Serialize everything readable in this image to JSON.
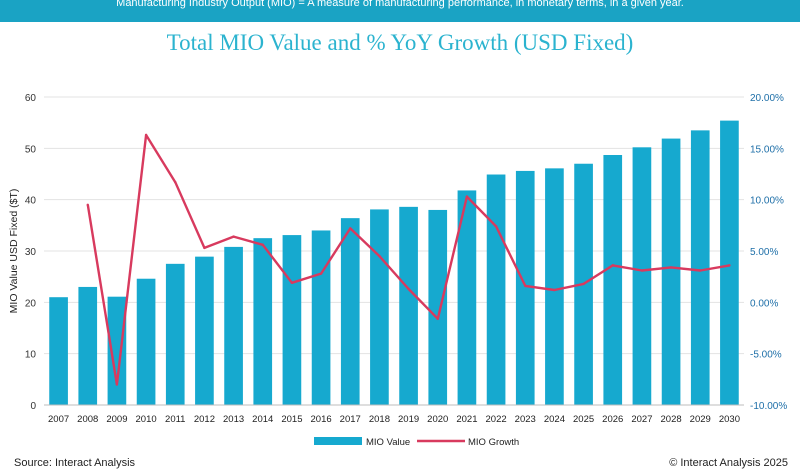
{
  "banner": {
    "text": "Manufacturing Industry Output (MIO) = A measure of manufacturing performance, in monetary terms, in a given year."
  },
  "footer": {
    "source": "Source: Interact Analysis",
    "copyright": "© Interact Analysis 2025"
  },
  "colors": {
    "bar": "#16a9cf",
    "line": "#d83a5e",
    "title": "#2bb3cf",
    "banner": "#1aa3c4"
  },
  "chart_data": {
    "type": "bar",
    "title": "Total MIO Value and % YoY Growth (USD Fixed)",
    "ylabel": "MIO Value USD Fixed ($T)",
    "xlabel": "",
    "categories": [
      "2007",
      "2008",
      "2009",
      "2010",
      "2011",
      "2012",
      "2013",
      "2014",
      "2015",
      "2016",
      "2017",
      "2018",
      "2019",
      "2020",
      "2021",
      "2022",
      "2023",
      "2024",
      "2025",
      "2026",
      "2027",
      "2028",
      "2029",
      "2030"
    ],
    "ylim": [
      0,
      60
    ],
    "yticks": [
      0,
      10,
      20,
      30,
      40,
      50,
      60
    ],
    "y2lim": [
      -10,
      20
    ],
    "y2ticks": [
      -10,
      -5,
      0,
      5,
      10,
      15,
      20
    ],
    "y2tick_labels": [
      "-10.00%",
      "-5.00%",
      "0.00%",
      "5.00%",
      "10.00%",
      "15.00%",
      "20.00%"
    ],
    "grid": true,
    "legend_position": "bottom",
    "series": [
      {
        "name": "MIO Value",
        "type": "bar",
        "axis": "left",
        "values": [
          21.0,
          23.0,
          21.1,
          24.6,
          27.5,
          28.9,
          30.8,
          32.5,
          33.1,
          34.0,
          36.4,
          38.1,
          38.6,
          38.0,
          41.8,
          44.9,
          45.6,
          46.1,
          47.0,
          48.7,
          50.2,
          51.9,
          53.5,
          55.4
        ]
      },
      {
        "name": "MIO Growth",
        "type": "line",
        "axis": "right",
        "values": [
          null,
          9.5,
          -8.0,
          16.3,
          11.7,
          5.3,
          6.4,
          5.6,
          1.9,
          2.8,
          7.2,
          4.5,
          1.3,
          -1.6,
          10.3,
          7.4,
          1.6,
          1.2,
          1.8,
          3.6,
          3.1,
          3.4,
          3.1,
          3.6
        ]
      }
    ]
  }
}
